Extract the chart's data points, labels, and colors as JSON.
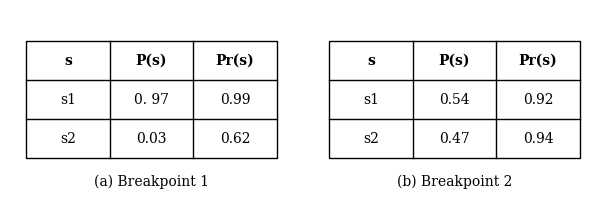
{
  "table1": {
    "headers": [
      "s",
      "P(s)",
      "Pr(s)"
    ],
    "rows": [
      [
        "s1",
        "0. 97",
        "0.99"
      ],
      [
        "s2",
        "0.03",
        "0.62"
      ]
    ],
    "caption": "(a) Breakpoint 1"
  },
  "table2": {
    "headers": [
      "s",
      "P(s)",
      "Pr(s)"
    ],
    "rows": [
      [
        "s1",
        "0.54",
        "0.92"
      ],
      [
        "s2",
        "0.47",
        "0.94"
      ]
    ],
    "caption": "(b) Breakpoint 2"
  },
  "background_color": "#ffffff",
  "table_line_color": "#000000",
  "text_color": "#000000",
  "header_fontsize": 10,
  "cell_fontsize": 10,
  "caption_fontsize": 10,
  "fig_width": 6.06,
  "fig_height": 2.08,
  "fig_dpi": 100
}
